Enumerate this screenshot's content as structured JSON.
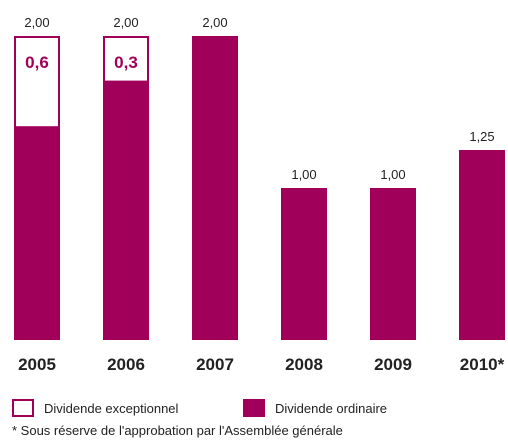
{
  "chart_data": {
    "type": "bar",
    "categories": [
      "2005",
      "2006",
      "2007",
      "2008",
      "2009",
      "2010*"
    ],
    "series": [
      {
        "name": "Dividende ordinaire",
        "color": "#a0005a",
        "values": [
          1.4,
          1.7,
          2.0,
          1.0,
          1.0,
          1.25
        ]
      },
      {
        "name": "Dividende exceptionnel",
        "color": "#ffffff",
        "outline": "#a0005a",
        "values": [
          0.6,
          0.3,
          0,
          0,
          0,
          0
        ],
        "labels": [
          "0,6",
          "0,3",
          "",
          "",
          "",
          ""
        ]
      }
    ],
    "total_labels": [
      "2,00",
      "2,00",
      "2,00",
      "1,00",
      "1,00",
      "1,25"
    ],
    "ylim": [
      0,
      2.0
    ],
    "stacked": true,
    "grid": false,
    "legend": "bottom"
  },
  "legend": {
    "exceptional_label": "Dividende exceptionnel",
    "ordinary_label": "Dividende ordinaire"
  },
  "footnote": "* Sous réserve de l'approbation par l'Assemblée générale",
  "colors": {
    "accent": "#a0005a",
    "text": "#222222"
  }
}
